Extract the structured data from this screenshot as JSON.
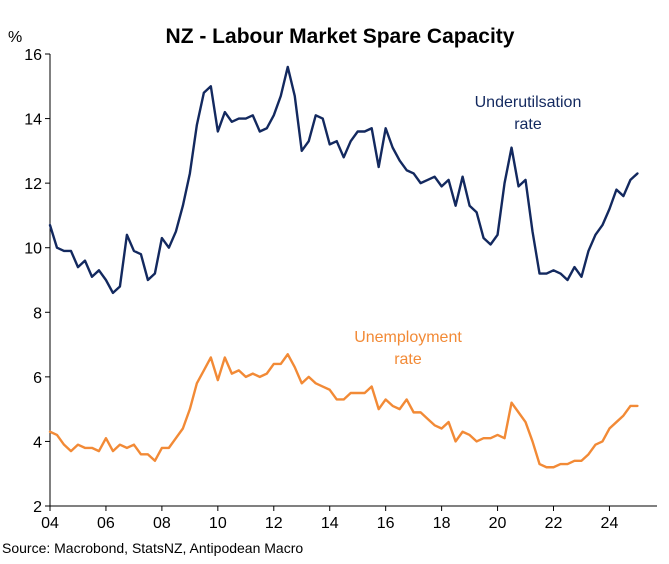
{
  "chart_data": {
    "type": "line",
    "title": "NZ - Labour Market Spare Capacity",
    "ylabel": "%",
    "xlabel": "",
    "source": "Source: Macrobond, StatsNZ, Antipodean Macro",
    "xlim": [
      2004,
      2025.7
    ],
    "ylim": [
      2,
      16
    ],
    "yticks": [
      {
        "value": 2,
        "label": "2"
      },
      {
        "value": 4,
        "label": "4"
      },
      {
        "value": 6,
        "label": "6"
      },
      {
        "value": 8,
        "label": "8"
      },
      {
        "value": 10,
        "label": "10"
      },
      {
        "value": 12,
        "label": "12"
      },
      {
        "value": 14,
        "label": "14"
      },
      {
        "value": 16,
        "label": "16"
      }
    ],
    "xticks": [
      {
        "value": 2004,
        "label": "04"
      },
      {
        "value": 2006,
        "label": "06"
      },
      {
        "value": 2008,
        "label": "08"
      },
      {
        "value": 2010,
        "label": "10"
      },
      {
        "value": 2012,
        "label": "12"
      },
      {
        "value": 2014,
        "label": "14"
      },
      {
        "value": 2016,
        "label": "16"
      },
      {
        "value": 2018,
        "label": "18"
      },
      {
        "value": 2020,
        "label": "20"
      },
      {
        "value": 2022,
        "label": "22"
      },
      {
        "value": 2024,
        "label": "24"
      }
    ],
    "grid": false,
    "series": [
      {
        "name": "Underutilsation rate",
        "label_lines": [
          "Underutilsation",
          "rate"
        ],
        "color": "#13295f",
        "x": [
          2004.0,
          2004.25,
          2004.5,
          2004.75,
          2005.0,
          2005.25,
          2005.5,
          2005.75,
          2006.0,
          2006.25,
          2006.5,
          2006.75,
          2007.0,
          2007.25,
          2007.5,
          2007.75,
          2008.0,
          2008.25,
          2008.5,
          2008.75,
          2009.0,
          2009.25,
          2009.5,
          2009.75,
          2010.0,
          2010.25,
          2010.5,
          2010.75,
          2011.0,
          2011.25,
          2011.5,
          2011.75,
          2012.0,
          2012.25,
          2012.5,
          2012.75,
          2013.0,
          2013.25,
          2013.5,
          2013.75,
          2014.0,
          2014.25,
          2014.5,
          2014.75,
          2015.0,
          2015.25,
          2015.5,
          2015.75,
          2016.0,
          2016.25,
          2016.5,
          2016.75,
          2017.0,
          2017.25,
          2017.5,
          2017.75,
          2018.0,
          2018.25,
          2018.5,
          2018.75,
          2019.0,
          2019.25,
          2019.5,
          2019.75,
          2020.0,
          2020.25,
          2020.5,
          2020.75,
          2021.0,
          2021.25,
          2021.5,
          2021.75,
          2022.0,
          2022.25,
          2022.5,
          2022.75,
          2023.0,
          2023.25,
          2023.5,
          2023.75,
          2024.0,
          2024.25,
          2024.5,
          2024.75,
          2025.0
        ],
        "values": [
          10.7,
          10.0,
          9.9,
          9.9,
          9.4,
          9.6,
          9.1,
          9.3,
          9.0,
          8.6,
          8.8,
          10.4,
          9.9,
          9.8,
          9.0,
          9.2,
          10.3,
          10.0,
          10.5,
          11.3,
          12.3,
          13.8,
          14.8,
          15.0,
          13.6,
          14.2,
          13.9,
          14.0,
          14.0,
          14.1,
          13.6,
          13.7,
          14.1,
          14.7,
          15.6,
          14.7,
          13.0,
          13.3,
          14.1,
          14.0,
          13.2,
          13.3,
          12.8,
          13.3,
          13.6,
          13.6,
          13.7,
          12.5,
          13.7,
          13.1,
          12.7,
          12.4,
          12.3,
          12.0,
          12.1,
          12.2,
          11.9,
          12.1,
          11.3,
          12.2,
          11.3,
          11.1,
          10.3,
          10.1,
          10.4,
          12.0,
          13.1,
          11.9,
          12.1,
          10.5,
          9.2,
          9.2,
          9.3,
          9.2,
          9.0,
          9.4,
          9.1,
          9.9,
          10.4,
          10.7,
          11.2,
          11.8,
          11.6,
          12.1,
          12.3
        ]
      },
      {
        "name": "Unemployment rate",
        "label_lines": [
          "Unemployment",
          "rate"
        ],
        "color": "#f28a36",
        "x": [
          2004.0,
          2004.25,
          2004.5,
          2004.75,
          2005.0,
          2005.25,
          2005.5,
          2005.75,
          2006.0,
          2006.25,
          2006.5,
          2006.75,
          2007.0,
          2007.25,
          2007.5,
          2007.75,
          2008.0,
          2008.25,
          2008.5,
          2008.75,
          2009.0,
          2009.25,
          2009.5,
          2009.75,
          2010.0,
          2010.25,
          2010.5,
          2010.75,
          2011.0,
          2011.25,
          2011.5,
          2011.75,
          2012.0,
          2012.25,
          2012.5,
          2012.75,
          2013.0,
          2013.25,
          2013.5,
          2013.75,
          2014.0,
          2014.25,
          2014.5,
          2014.75,
          2015.0,
          2015.25,
          2015.5,
          2015.75,
          2016.0,
          2016.25,
          2016.5,
          2016.75,
          2017.0,
          2017.25,
          2017.5,
          2017.75,
          2018.0,
          2018.25,
          2018.5,
          2018.75,
          2019.0,
          2019.25,
          2019.5,
          2019.75,
          2020.0,
          2020.25,
          2020.5,
          2020.75,
          2021.0,
          2021.25,
          2021.5,
          2021.75,
          2022.0,
          2022.25,
          2022.5,
          2022.75,
          2023.0,
          2023.25,
          2023.5,
          2023.75,
          2024.0,
          2024.25,
          2024.5,
          2024.75,
          2025.0
        ],
        "values": [
          4.3,
          4.2,
          3.9,
          3.7,
          3.9,
          3.8,
          3.8,
          3.7,
          4.1,
          3.7,
          3.9,
          3.8,
          3.9,
          3.6,
          3.6,
          3.4,
          3.8,
          3.8,
          4.1,
          4.4,
          5.0,
          5.8,
          6.2,
          6.6,
          5.9,
          6.6,
          6.1,
          6.2,
          6.0,
          6.1,
          6.0,
          6.1,
          6.4,
          6.4,
          6.7,
          6.3,
          5.8,
          6.0,
          5.8,
          5.7,
          5.6,
          5.3,
          5.3,
          5.5,
          5.5,
          5.5,
          5.7,
          5.0,
          5.3,
          5.1,
          5.0,
          5.3,
          4.9,
          4.9,
          4.7,
          4.5,
          4.4,
          4.6,
          4.0,
          4.3,
          4.2,
          4.0,
          4.1,
          4.1,
          4.2,
          4.1,
          5.2,
          4.9,
          4.6,
          4.0,
          3.3,
          3.2,
          3.2,
          3.3,
          3.3,
          3.4,
          3.4,
          3.6,
          3.9,
          4.0,
          4.4,
          4.6,
          4.8,
          5.1,
          5.1
        ]
      }
    ]
  }
}
